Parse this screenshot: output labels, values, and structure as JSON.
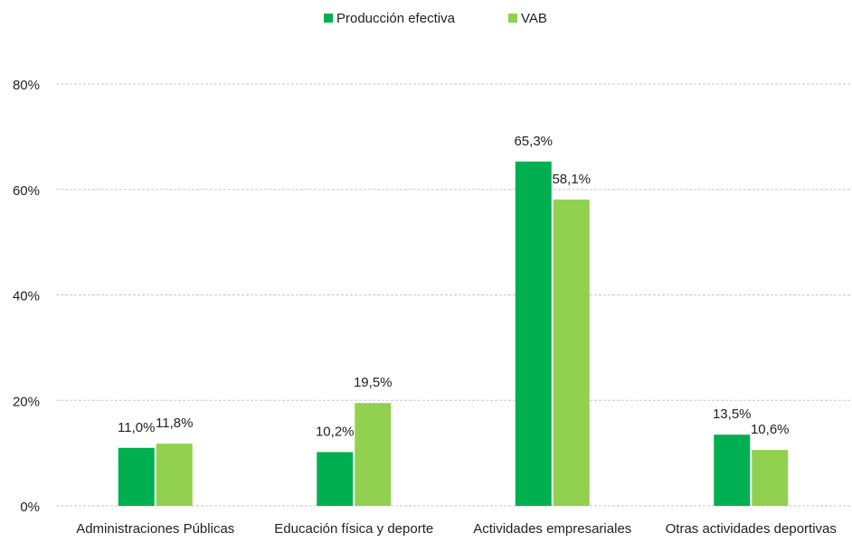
{
  "chart_data": {
    "type": "bar",
    "categories": [
      "Administraciones Públicas",
      "Educación física y deporte",
      "Actividades empresariales",
      "Otras actividades deportivas"
    ],
    "series": [
      {
        "name": "Producción efectiva",
        "values": [
          11.0,
          10.2,
          65.3,
          13.5
        ],
        "labels": [
          "11,0%",
          "10,2%",
          "65,3%",
          "13,5%"
        ],
        "color": "#00b050"
      },
      {
        "name": "VAB",
        "values": [
          11.8,
          19.5,
          58.1,
          10.6
        ],
        "labels": [
          "11,8%",
          "19,5%",
          "58,1%",
          "10,6%"
        ],
        "color": "#92d050"
      }
    ],
    "ylim": [
      0,
      80
    ],
    "yticks": [
      0,
      20,
      40,
      60,
      80
    ],
    "ytick_labels": [
      "0%",
      "20%",
      "40%",
      "60%",
      "80%"
    ],
    "grid": true,
    "grid_style": "dashed",
    "legend_position": "top-center",
    "title": "",
    "xlabel": "",
    "ylabel": ""
  }
}
